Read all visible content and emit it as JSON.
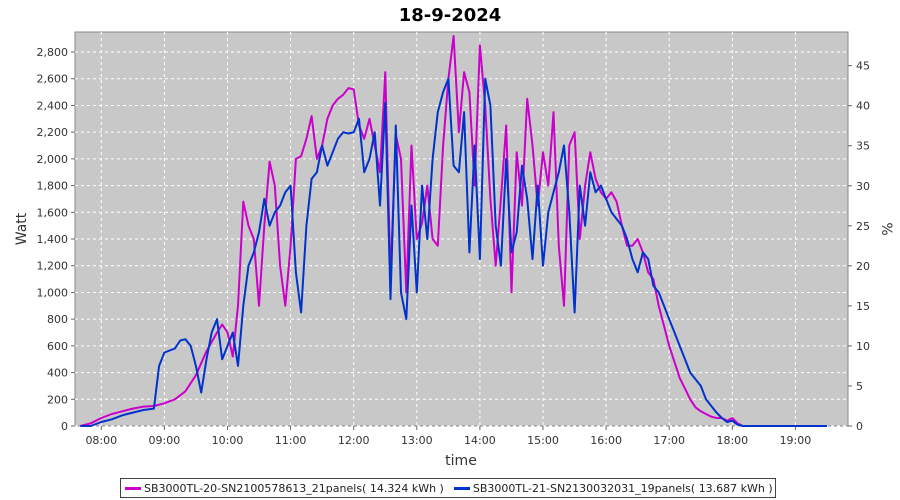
{
  "chart_data": {
    "type": "line",
    "title": "18-9-2024",
    "xlabel": "time",
    "ylabel": "Watt",
    "y2label": "%",
    "xlim": [
      "07:35",
      "19:50"
    ],
    "ylim": [
      0,
      2950
    ],
    "y2lim": [
      0,
      49.2
    ],
    "x_ticks": [
      "08:00",
      "09:00",
      "10:00",
      "11:00",
      "12:00",
      "13:00",
      "14:00",
      "15:00",
      "16:00",
      "17:00",
      "18:00",
      "19:00"
    ],
    "y_ticks": [
      "0",
      "200",
      "400",
      "600",
      "800",
      "1,000",
      "1,200",
      "1,400",
      "1,600",
      "1,800",
      "2,000",
      "2,200",
      "2,400",
      "2,600",
      "2,800"
    ],
    "y2_ticks": [
      "0",
      "5",
      "10",
      "15",
      "20",
      "25",
      "30",
      "35",
      "40",
      "45"
    ],
    "grid": true,
    "legend_position": "bottom",
    "series": [
      {
        "name": "SB3000TL-20-SN2100578613_21panels( 14.324 kWh )",
        "color": "#cc00cc",
        "points": [
          [
            "07:40",
            0
          ],
          [
            "07:50",
            20
          ],
          [
            "08:00",
            60
          ],
          [
            "08:10",
            90
          ],
          [
            "08:20",
            110
          ],
          [
            "08:30",
            130
          ],
          [
            "08:40",
            145
          ],
          [
            "08:50",
            150
          ],
          [
            "09:00",
            170
          ],
          [
            "09:10",
            200
          ],
          [
            "09:20",
            260
          ],
          [
            "09:30",
            380
          ],
          [
            "09:40",
            560
          ],
          [
            "09:50",
            700
          ],
          [
            "09:55",
            760
          ],
          [
            "10:00",
            700
          ],
          [
            "10:05",
            520
          ],
          [
            "10:10",
            900
          ],
          [
            "10:15",
            1680
          ],
          [
            "10:20",
            1500
          ],
          [
            "10:25",
            1400
          ],
          [
            "10:30",
            900
          ],
          [
            "10:35",
            1500
          ],
          [
            "10:40",
            1980
          ],
          [
            "10:45",
            1800
          ],
          [
            "10:50",
            1200
          ],
          [
            "10:55",
            900
          ],
          [
            "11:00",
            1350
          ],
          [
            "11:05",
            2000
          ],
          [
            "11:10",
            2020
          ],
          [
            "11:15",
            2150
          ],
          [
            "11:20",
            2320
          ],
          [
            "11:25",
            2000
          ],
          [
            "11:30",
            2100
          ],
          [
            "11:35",
            2300
          ],
          [
            "11:40",
            2400
          ],
          [
            "11:45",
            2450
          ],
          [
            "11:50",
            2480
          ],
          [
            "11:55",
            2530
          ],
          [
            "12:00",
            2520
          ],
          [
            "12:05",
            2250
          ],
          [
            "12:10",
            2150
          ],
          [
            "12:15",
            2300
          ],
          [
            "12:20",
            2100
          ],
          [
            "12:25",
            1900
          ],
          [
            "12:30",
            2650
          ],
          [
            "12:35",
            1100
          ],
          [
            "12:40",
            2180
          ],
          [
            "12:45",
            2000
          ],
          [
            "12:50",
            1000
          ],
          [
            "12:55",
            2100
          ],
          [
            "13:00",
            1400
          ],
          [
            "13:05",
            1520
          ],
          [
            "13:10",
            1800
          ],
          [
            "13:15",
            1400
          ],
          [
            "13:20",
            1350
          ],
          [
            "13:25",
            2100
          ],
          [
            "13:30",
            2600
          ],
          [
            "13:35",
            2920
          ],
          [
            "13:40",
            2200
          ],
          [
            "13:45",
            2650
          ],
          [
            "13:50",
            2500
          ],
          [
            "13:55",
            1800
          ],
          [
            "14:00",
            2850
          ],
          [
            "14:05",
            2400
          ],
          [
            "14:10",
            1700
          ],
          [
            "14:15",
            1200
          ],
          [
            "14:20",
            1700
          ],
          [
            "14:25",
            2250
          ],
          [
            "14:30",
            1000
          ],
          [
            "14:35",
            2050
          ],
          [
            "14:40",
            1650
          ],
          [
            "14:45",
            2450
          ],
          [
            "14:50",
            2100
          ],
          [
            "14:55",
            1650
          ],
          [
            "15:00",
            2050
          ],
          [
            "15:05",
            1800
          ],
          [
            "15:10",
            2350
          ],
          [
            "15:15",
            1350
          ],
          [
            "15:20",
            900
          ],
          [
            "15:25",
            2100
          ],
          [
            "15:30",
            2200
          ],
          [
            "15:35",
            1400
          ],
          [
            "15:40",
            1800
          ],
          [
            "15:45",
            2050
          ],
          [
            "15:50",
            1850
          ],
          [
            "15:55",
            1750
          ],
          [
            "16:00",
            1700
          ],
          [
            "16:05",
            1750
          ],
          [
            "16:10",
            1680
          ],
          [
            "16:15",
            1500
          ],
          [
            "16:20",
            1350
          ],
          [
            "16:25",
            1350
          ],
          [
            "16:30",
            1400
          ],
          [
            "16:35",
            1300
          ],
          [
            "16:40",
            1150
          ],
          [
            "16:45",
            1100
          ],
          [
            "16:50",
            900
          ],
          [
            "16:55",
            750
          ],
          [
            "17:00",
            600
          ],
          [
            "17:05",
            480
          ],
          [
            "17:10",
            360
          ],
          [
            "17:15",
            280
          ],
          [
            "17:20",
            200
          ],
          [
            "17:25",
            140
          ],
          [
            "17:30",
            110
          ],
          [
            "17:35",
            90
          ],
          [
            "17:40",
            70
          ],
          [
            "17:45",
            60
          ],
          [
            "17:50",
            60
          ],
          [
            "17:55",
            40
          ],
          [
            "18:00",
            60
          ],
          [
            "18:05",
            20
          ],
          [
            "18:10",
            0
          ],
          [
            "19:30",
            0
          ]
        ]
      },
      {
        "name": "SB3000TL-21-SN2130032031_19panels( 13.687 kWh )",
        "color": "#0033cc",
        "points": [
          [
            "07:40",
            0
          ],
          [
            "07:50",
            0
          ],
          [
            "08:00",
            30
          ],
          [
            "08:10",
            50
          ],
          [
            "08:20",
            80
          ],
          [
            "08:30",
            100
          ],
          [
            "08:40",
            120
          ],
          [
            "08:50",
            130
          ],
          [
            "08:55",
            450
          ],
          [
            "09:00",
            550
          ],
          [
            "09:10",
            580
          ],
          [
            "09:15",
            640
          ],
          [
            "09:20",
            650
          ],
          [
            "09:25",
            600
          ],
          [
            "09:30",
            450
          ],
          [
            "09:35",
            250
          ],
          [
            "09:40",
            500
          ],
          [
            "09:45",
            700
          ],
          [
            "09:50",
            800
          ],
          [
            "09:55",
            500
          ],
          [
            "10:00",
            600
          ],
          [
            "10:05",
            700
          ],
          [
            "10:10",
            450
          ],
          [
            "10:15",
            900
          ],
          [
            "10:20",
            1200
          ],
          [
            "10:25",
            1300
          ],
          [
            "10:30",
            1450
          ],
          [
            "10:35",
            1700
          ],
          [
            "10:40",
            1500
          ],
          [
            "10:45",
            1600
          ],
          [
            "10:50",
            1650
          ],
          [
            "10:55",
            1750
          ],
          [
            "11:00",
            1800
          ],
          [
            "11:05",
            1150
          ],
          [
            "11:10",
            850
          ],
          [
            "11:15",
            1500
          ],
          [
            "11:20",
            1850
          ],
          [
            "11:25",
            1900
          ],
          [
            "11:30",
            2100
          ],
          [
            "11:35",
            1950
          ],
          [
            "11:40",
            2050
          ],
          [
            "11:45",
            2150
          ],
          [
            "11:50",
            2200
          ],
          [
            "11:55",
            2190
          ],
          [
            "12:00",
            2200
          ],
          [
            "12:05",
            2300
          ],
          [
            "12:10",
            1900
          ],
          [
            "12:15",
            2000
          ],
          [
            "12:20",
            2200
          ],
          [
            "12:25",
            1650
          ],
          [
            "12:30",
            2420
          ],
          [
            "12:35",
            950
          ],
          [
            "12:40",
            2250
          ],
          [
            "12:45",
            1000
          ],
          [
            "12:50",
            800
          ],
          [
            "12:55",
            1650
          ],
          [
            "13:00",
            1000
          ],
          [
            "13:05",
            1800
          ],
          [
            "13:10",
            1400
          ],
          [
            "13:15",
            2000
          ],
          [
            "13:20",
            2350
          ],
          [
            "13:25",
            2500
          ],
          [
            "13:30",
            2600
          ],
          [
            "13:35",
            1950
          ],
          [
            "13:40",
            1900
          ],
          [
            "13:45",
            2350
          ],
          [
            "13:50",
            1300
          ],
          [
            "13:55",
            2100
          ],
          [
            "14:00",
            1250
          ],
          [
            "14:05",
            2600
          ],
          [
            "14:10",
            2400
          ],
          [
            "14:15",
            1500
          ],
          [
            "14:20",
            1200
          ],
          [
            "14:25",
            2000
          ],
          [
            "14:30",
            1300
          ],
          [
            "14:35",
            1450
          ],
          [
            "14:40",
            1950
          ],
          [
            "14:45",
            1700
          ],
          [
            "14:50",
            1250
          ],
          [
            "14:55",
            1800
          ],
          [
            "15:00",
            1200
          ],
          [
            "15:05",
            1600
          ],
          [
            "15:10",
            1750
          ],
          [
            "15:15",
            1900
          ],
          [
            "15:20",
            2100
          ],
          [
            "15:25",
            1600
          ],
          [
            "15:30",
            850
          ],
          [
            "15:35",
            1800
          ],
          [
            "15:40",
            1500
          ],
          [
            "15:45",
            1900
          ],
          [
            "15:50",
            1750
          ],
          [
            "15:55",
            1800
          ],
          [
            "16:00",
            1700
          ],
          [
            "16:05",
            1600
          ],
          [
            "16:10",
            1550
          ],
          [
            "16:15",
            1500
          ],
          [
            "16:20",
            1400
          ],
          [
            "16:25",
            1250
          ],
          [
            "16:30",
            1150
          ],
          [
            "16:35",
            1300
          ],
          [
            "16:40",
            1250
          ],
          [
            "16:45",
            1050
          ],
          [
            "16:50",
            1000
          ],
          [
            "16:55",
            900
          ],
          [
            "17:00",
            800
          ],
          [
            "17:05",
            700
          ],
          [
            "17:10",
            600
          ],
          [
            "17:15",
            500
          ],
          [
            "17:20",
            400
          ],
          [
            "17:25",
            350
          ],
          [
            "17:30",
            300
          ],
          [
            "17:35",
            200
          ],
          [
            "17:40",
            150
          ],
          [
            "17:45",
            100
          ],
          [
            "17:50",
            60
          ],
          [
            "17:55",
            30
          ],
          [
            "18:00",
            40
          ],
          [
            "18:05",
            10
          ],
          [
            "18:10",
            0
          ],
          [
            "19:30",
            0
          ]
        ]
      }
    ]
  }
}
